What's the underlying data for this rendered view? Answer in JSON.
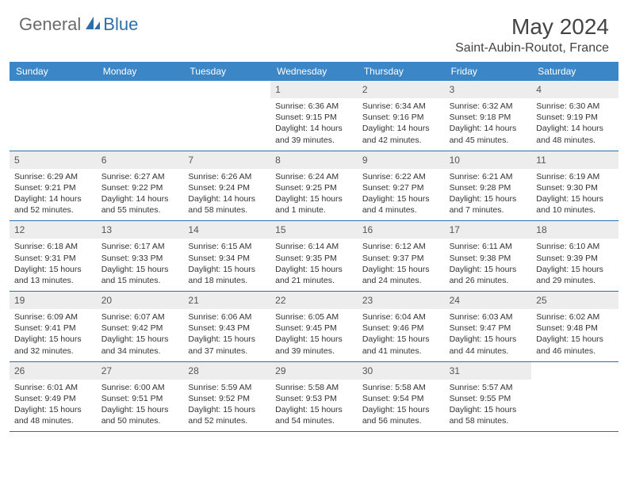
{
  "brand": {
    "text1": "General",
    "text2": "Blue"
  },
  "title": "May 2024",
  "location": "Saint-Aubin-Routot, France",
  "colors": {
    "header_bg": "#3b86c6",
    "accent": "#2f6fa8",
    "daynum_bg": "#ededed",
    "text": "#333333"
  },
  "dow": [
    "Sunday",
    "Monday",
    "Tuesday",
    "Wednesday",
    "Thursday",
    "Friday",
    "Saturday"
  ],
  "weeks": [
    [
      {
        "n": "",
        "empty": true
      },
      {
        "n": "",
        "empty": true
      },
      {
        "n": "",
        "empty": true
      },
      {
        "n": "1",
        "sr": "6:36 AM",
        "ss": "9:15 PM",
        "dl": "14 hours and 39 minutes."
      },
      {
        "n": "2",
        "sr": "6:34 AM",
        "ss": "9:16 PM",
        "dl": "14 hours and 42 minutes."
      },
      {
        "n": "3",
        "sr": "6:32 AM",
        "ss": "9:18 PM",
        "dl": "14 hours and 45 minutes."
      },
      {
        "n": "4",
        "sr": "6:30 AM",
        "ss": "9:19 PM",
        "dl": "14 hours and 48 minutes."
      }
    ],
    [
      {
        "n": "5",
        "sr": "6:29 AM",
        "ss": "9:21 PM",
        "dl": "14 hours and 52 minutes."
      },
      {
        "n": "6",
        "sr": "6:27 AM",
        "ss": "9:22 PM",
        "dl": "14 hours and 55 minutes."
      },
      {
        "n": "7",
        "sr": "6:26 AM",
        "ss": "9:24 PM",
        "dl": "14 hours and 58 minutes."
      },
      {
        "n": "8",
        "sr": "6:24 AM",
        "ss": "9:25 PM",
        "dl": "15 hours and 1 minute."
      },
      {
        "n": "9",
        "sr": "6:22 AM",
        "ss": "9:27 PM",
        "dl": "15 hours and 4 minutes."
      },
      {
        "n": "10",
        "sr": "6:21 AM",
        "ss": "9:28 PM",
        "dl": "15 hours and 7 minutes."
      },
      {
        "n": "11",
        "sr": "6:19 AM",
        "ss": "9:30 PM",
        "dl": "15 hours and 10 minutes."
      }
    ],
    [
      {
        "n": "12",
        "sr": "6:18 AM",
        "ss": "9:31 PM",
        "dl": "15 hours and 13 minutes."
      },
      {
        "n": "13",
        "sr": "6:17 AM",
        "ss": "9:33 PM",
        "dl": "15 hours and 15 minutes."
      },
      {
        "n": "14",
        "sr": "6:15 AM",
        "ss": "9:34 PM",
        "dl": "15 hours and 18 minutes."
      },
      {
        "n": "15",
        "sr": "6:14 AM",
        "ss": "9:35 PM",
        "dl": "15 hours and 21 minutes."
      },
      {
        "n": "16",
        "sr": "6:12 AM",
        "ss": "9:37 PM",
        "dl": "15 hours and 24 minutes."
      },
      {
        "n": "17",
        "sr": "6:11 AM",
        "ss": "9:38 PM",
        "dl": "15 hours and 26 minutes."
      },
      {
        "n": "18",
        "sr": "6:10 AM",
        "ss": "9:39 PM",
        "dl": "15 hours and 29 minutes."
      }
    ],
    [
      {
        "n": "19",
        "sr": "6:09 AM",
        "ss": "9:41 PM",
        "dl": "15 hours and 32 minutes."
      },
      {
        "n": "20",
        "sr": "6:07 AM",
        "ss": "9:42 PM",
        "dl": "15 hours and 34 minutes."
      },
      {
        "n": "21",
        "sr": "6:06 AM",
        "ss": "9:43 PM",
        "dl": "15 hours and 37 minutes."
      },
      {
        "n": "22",
        "sr": "6:05 AM",
        "ss": "9:45 PM",
        "dl": "15 hours and 39 minutes."
      },
      {
        "n": "23",
        "sr": "6:04 AM",
        "ss": "9:46 PM",
        "dl": "15 hours and 41 minutes."
      },
      {
        "n": "24",
        "sr": "6:03 AM",
        "ss": "9:47 PM",
        "dl": "15 hours and 44 minutes."
      },
      {
        "n": "25",
        "sr": "6:02 AM",
        "ss": "9:48 PM",
        "dl": "15 hours and 46 minutes."
      }
    ],
    [
      {
        "n": "26",
        "sr": "6:01 AM",
        "ss": "9:49 PM",
        "dl": "15 hours and 48 minutes."
      },
      {
        "n": "27",
        "sr": "6:00 AM",
        "ss": "9:51 PM",
        "dl": "15 hours and 50 minutes."
      },
      {
        "n": "28",
        "sr": "5:59 AM",
        "ss": "9:52 PM",
        "dl": "15 hours and 52 minutes."
      },
      {
        "n": "29",
        "sr": "5:58 AM",
        "ss": "9:53 PM",
        "dl": "15 hours and 54 minutes."
      },
      {
        "n": "30",
        "sr": "5:58 AM",
        "ss": "9:54 PM",
        "dl": "15 hours and 56 minutes."
      },
      {
        "n": "31",
        "sr": "5:57 AM",
        "ss": "9:55 PM",
        "dl": "15 hours and 58 minutes."
      },
      {
        "n": "",
        "empty": true
      }
    ]
  ],
  "labels": {
    "sunrise": "Sunrise:",
    "sunset": "Sunset:",
    "daylight": "Daylight:"
  }
}
